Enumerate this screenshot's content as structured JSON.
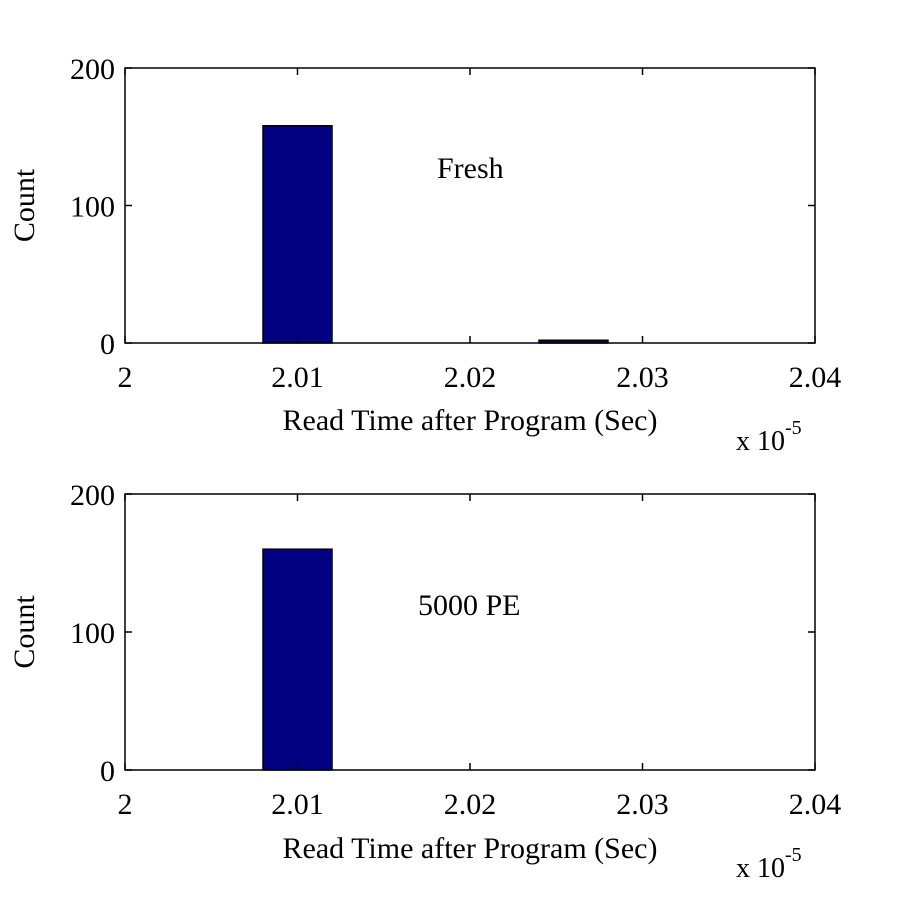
{
  "chart_data": [
    {
      "type": "bar",
      "title": "",
      "annotation": "Fresh",
      "xlabel": "Read Time after Program (Sec)",
      "ylabel": "Count",
      "x_exponent_label": "x 10",
      "x_exponent_power": "-5",
      "xlim": [
        2.0,
        2.04
      ],
      "ylim": [
        0,
        200
      ],
      "xticks": [
        "2",
        "2.01",
        "2.02",
        "2.03",
        "2.04"
      ],
      "yticks": [
        "0",
        "100",
        "200"
      ],
      "grid": false,
      "bar_color": "#000080",
      "bins": [
        {
          "x": 2.01,
          "width": 0.004,
          "value": 158
        },
        {
          "x": 2.026,
          "width": 0.004,
          "value": 2
        }
      ]
    },
    {
      "type": "bar",
      "title": "",
      "annotation": "5000 PE",
      "xlabel": "Read Time after Program (Sec)",
      "ylabel": "Count",
      "x_exponent_label": "x 10",
      "x_exponent_power": "-5",
      "xlim": [
        2.0,
        2.04
      ],
      "ylim": [
        0,
        200
      ],
      "xticks": [
        "2",
        "2.01",
        "2.02",
        "2.03",
        "2.04"
      ],
      "yticks": [
        "0",
        "100",
        "200"
      ],
      "grid": false,
      "bar_color": "#000080",
      "bins": [
        {
          "x": 2.01,
          "width": 0.004,
          "value": 160
        }
      ]
    }
  ]
}
